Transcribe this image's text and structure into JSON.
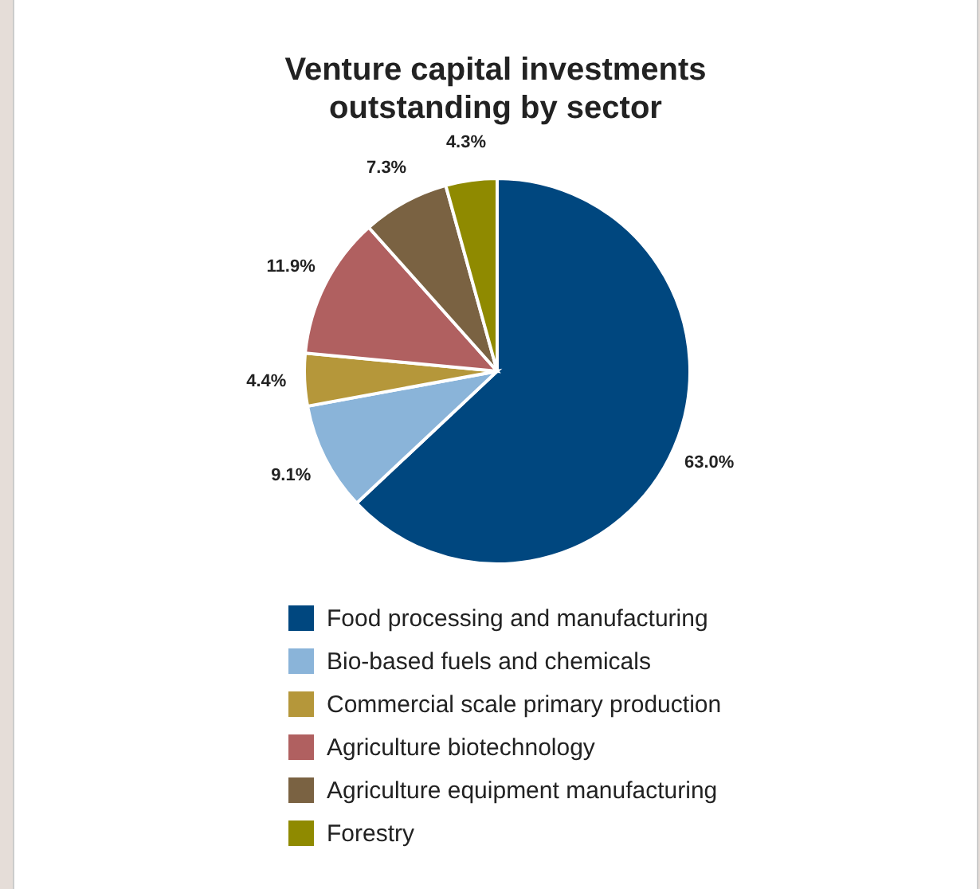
{
  "chart_data": {
    "type": "pie",
    "title": "Venture capital investments outstanding by sector",
    "categories": [
      "Food processing and manufacturing",
      "Bio-based fuels and chemicals",
      "Commercial scale primary production",
      "Agriculture biotechnology",
      "Agriculture equipment manufacturing",
      "Forestry"
    ],
    "values": [
      63.0,
      9.1,
      4.4,
      11.9,
      7.3,
      4.3
    ],
    "value_labels": [
      "63.0%",
      "9.1%",
      "4.4%",
      "11.9%",
      "7.3%",
      "4.3%"
    ],
    "colors": [
      "#00477f",
      "#8ab4d9",
      "#b5973a",
      "#b06060",
      "#7a6242",
      "#8f8a00"
    ],
    "legend": "bottom"
  }
}
